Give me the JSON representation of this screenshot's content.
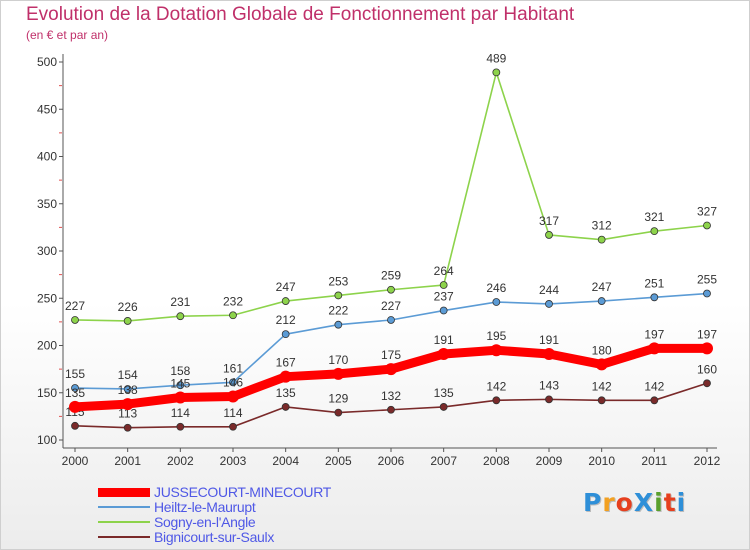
{
  "title": "Evolution de la Dotation Globale de Fonctionnement par Habitant",
  "subtitle": "(en € et par an)",
  "logo": {
    "text": "ProXiti",
    "letter_colors": [
      "#2e8fd8",
      "#f2a021",
      "#e63f1e",
      "#2e8fd8",
      "#5aa02c",
      "#e63f1e",
      "#2e8fd8"
    ]
  },
  "chart_data": {
    "type": "line",
    "x": [
      "2000",
      "2001",
      "2002",
      "2003",
      "2004",
      "2005",
      "2006",
      "2007",
      "2008",
      "2009",
      "2010",
      "2011",
      "2012"
    ],
    "ylim": [
      100,
      500
    ],
    "yticks": [
      100,
      150,
      200,
      250,
      300,
      350,
      400,
      450,
      500
    ],
    "grid": false,
    "legend_position": "bottom-left",
    "series": [
      {
        "name": "JUSSECOURT-MINECOURT",
        "color": "#ff0000",
        "values": [
          135,
          138,
          145,
          146,
          167,
          170,
          175,
          191,
          195,
          191,
          180,
          197,
          197
        ],
        "labels": [
          "135",
          "138",
          "145",
          "146",
          "167",
          "170",
          "175",
          "191",
          "195",
          "191",
          "180",
          "197",
          "197"
        ]
      },
      {
        "name": "Heiltz-le-Maurupt",
        "color": "#5b9bd5",
        "values": [
          155,
          154,
          158,
          161,
          212,
          222,
          227,
          237,
          246,
          244,
          247,
          251,
          255
        ],
        "labels": [
          "155",
          "154",
          "158",
          "161",
          "212",
          "222",
          "227",
          "237",
          "246",
          "244",
          "247",
          "251",
          "255"
        ]
      },
      {
        "name": "Sogny-en-l'Angle",
        "color": "#8dd34b",
        "values": [
          227,
          226,
          231,
          232,
          247,
          253,
          259,
          264,
          489,
          317,
          312,
          321,
          327
        ],
        "labels": [
          "227",
          "226",
          "231",
          "232",
          "247",
          "253",
          "259",
          "264",
          "489",
          "317",
          "312",
          "321",
          "327"
        ]
      },
      {
        "name": "Bignicourt-sur-Saulx",
        "color": "#7a2a2a",
        "values": [
          115,
          113,
          114,
          114,
          135,
          129,
          132,
          135,
          142,
          143,
          142,
          142,
          160
        ],
        "labels": [
          "115",
          "113",
          "114",
          "114",
          "135",
          "129",
          "132",
          "135",
          "142",
          "143",
          "142",
          "142",
          "160"
        ]
      }
    ]
  }
}
